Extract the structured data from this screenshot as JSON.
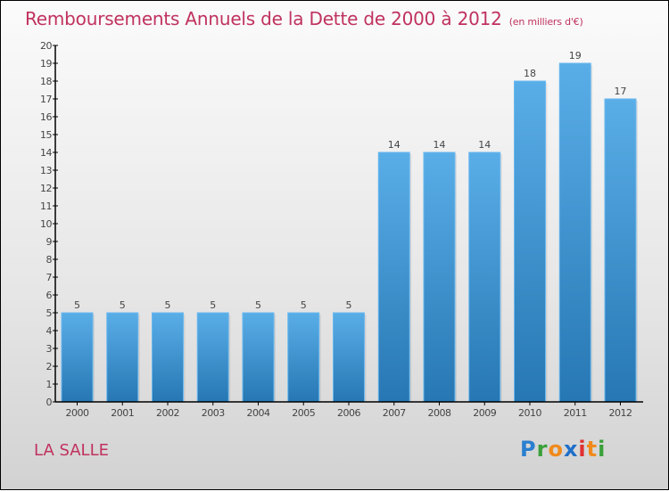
{
  "title": "Remboursements Annuels de la Dette de 2000 à 2012",
  "subtitle": "(en milliers d'€)",
  "place_name": "LA SALLE",
  "brand": {
    "letters": [
      {
        "char": "P",
        "color": "#2a7fd0"
      },
      {
        "char": "r",
        "color": "#3aa03a"
      },
      {
        "char": "o",
        "color": "#f08a1c"
      },
      {
        "char": "x",
        "color": "#1f6fc8"
      },
      {
        "char": "i",
        "color": "#e03030"
      },
      {
        "char": "t",
        "color": "#f08a1c"
      },
      {
        "char": "i",
        "color": "#3aa03a"
      }
    ]
  },
  "colors": {
    "bar_top": "#5aaee8",
    "bar_bottom": "#2677b3",
    "accent": "#c0325f"
  },
  "chart_data": {
    "type": "bar",
    "title": "Remboursements Annuels de la Dette de 2000 à 2012",
    "subtitle": "(en milliers d'€)",
    "xlabel": "",
    "ylabel": "",
    "categories": [
      "2000",
      "2001",
      "2002",
      "2003",
      "2004",
      "2005",
      "2006",
      "2007",
      "2008",
      "2009",
      "2010",
      "2011",
      "2012"
    ],
    "values": [
      5,
      5,
      5,
      5,
      5,
      5,
      5,
      14,
      14,
      14,
      18,
      19,
      17
    ],
    "ylim": [
      0,
      20
    ],
    "yticks": [
      0,
      1,
      2,
      3,
      4,
      5,
      6,
      7,
      8,
      9,
      10,
      11,
      12,
      13,
      14,
      15,
      16,
      17,
      18,
      19,
      20
    ],
    "grid": false,
    "legend": "none"
  }
}
